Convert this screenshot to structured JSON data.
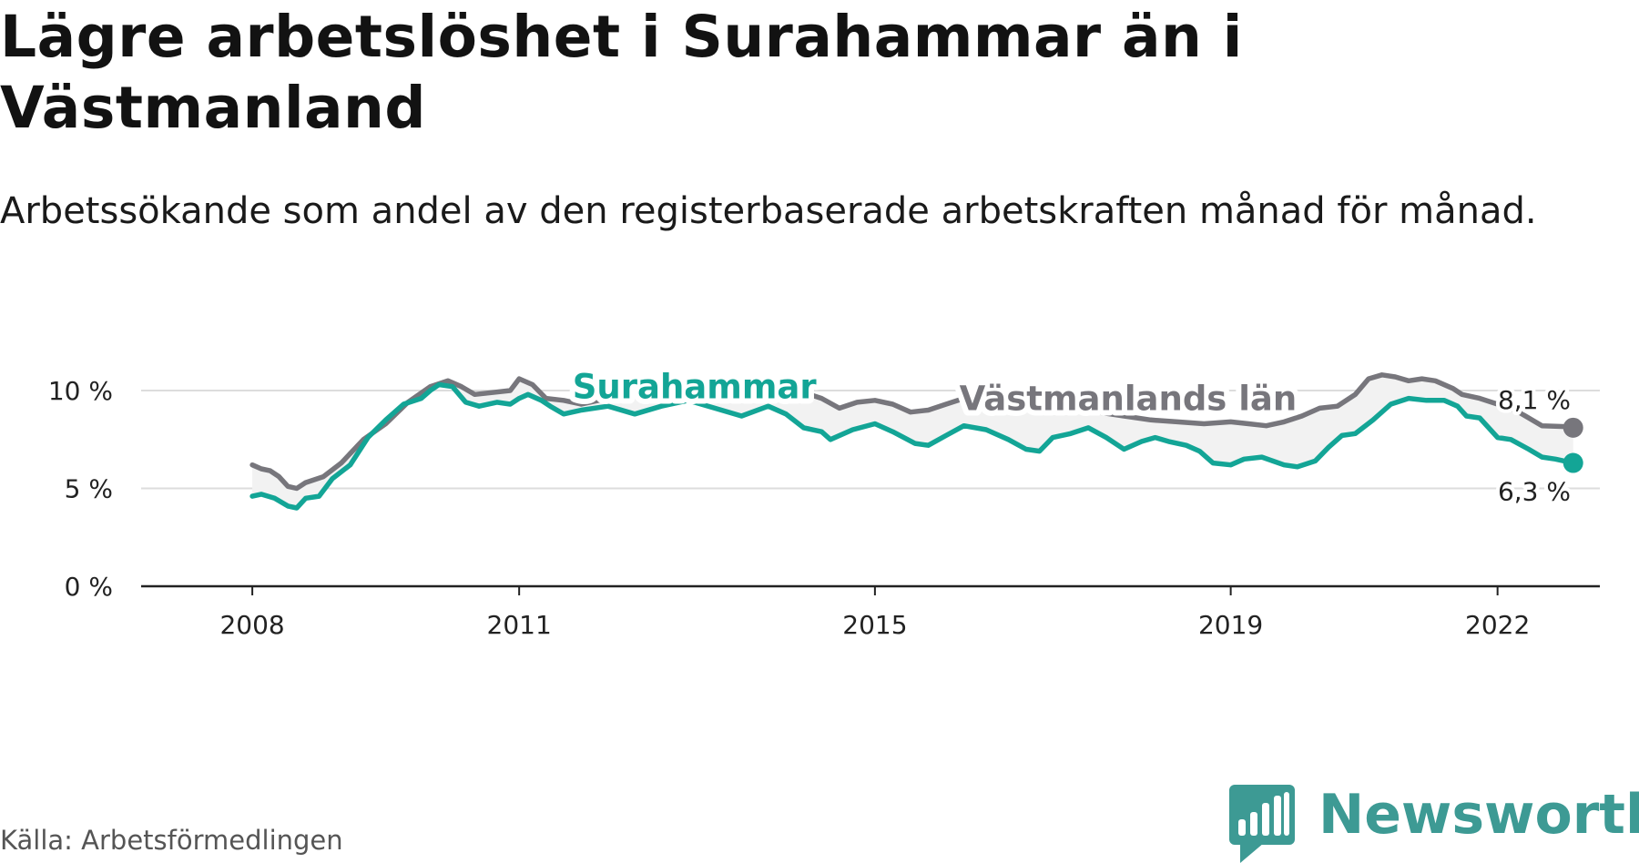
{
  "title": "Lägre arbetslöshet i Surahammar än i Västmanland",
  "subtitle": "Arbetssökande som andel av den registerbaserade arbetskraften månad för månad.",
  "source": "Källa: Arbetsförmedlingen",
  "brand": {
    "name": "Newsworthy",
    "icon": "newsworthy-logo-icon"
  },
  "colors": {
    "surahammar": "#13a596",
    "vastmanland": "#77767c",
    "gap_fill": "#f2f2f2",
    "grid": "#dddddd",
    "axis": "#222222"
  },
  "chart_data": {
    "type": "line",
    "title": "Lägre arbetslöshet i Surahammar än i Västmanland",
    "xlabel": "",
    "ylabel": "",
    "x_ticks": [
      {
        "label": "2008",
        "value": 2008.0
      },
      {
        "label": "2011",
        "value": 2011.0
      },
      {
        "label": "2015",
        "value": 2015.0
      },
      {
        "label": "2019",
        "value": 2019.0
      },
      {
        "label": "2022",
        "value": 2022.0
      }
    ],
    "y_ticks": [
      {
        "label": "0 %",
        "value": 0
      },
      {
        "label": "5 %",
        "value": 5
      },
      {
        "label": "10 %",
        "value": 10
      }
    ],
    "xlim": [
      2006.75,
      2023.15
    ],
    "ylim": [
      0,
      10
    ],
    "grid": true,
    "series": [
      {
        "name": "Västmanlands län",
        "label": "Västmanlands län",
        "end_label": "8,1 %",
        "end_value": 8.1,
        "points": [
          [
            2008.0,
            6.2
          ],
          [
            2008.1,
            6.0
          ],
          [
            2008.2,
            5.9
          ],
          [
            2008.3,
            5.6
          ],
          [
            2008.4,
            5.1
          ],
          [
            2008.5,
            5.0
          ],
          [
            2008.6,
            5.3
          ],
          [
            2008.8,
            5.6
          ],
          [
            2009.0,
            6.3
          ],
          [
            2009.25,
            7.5
          ],
          [
            2009.5,
            8.3
          ],
          [
            2009.75,
            9.4
          ],
          [
            2010.0,
            10.2
          ],
          [
            2010.2,
            10.5
          ],
          [
            2010.35,
            10.2
          ],
          [
            2010.5,
            9.8
          ],
          [
            2010.7,
            9.9
          ],
          [
            2010.9,
            10.0
          ],
          [
            2011.0,
            10.6
          ],
          [
            2011.15,
            10.3
          ],
          [
            2011.3,
            9.6
          ],
          [
            2011.5,
            9.5
          ],
          [
            2011.7,
            9.3
          ],
          [
            2012.0,
            9.6
          ],
          [
            2012.3,
            9.9
          ],
          [
            2012.6,
            10.2
          ],
          [
            2012.9,
            10.6
          ],
          [
            2013.2,
            10.5
          ],
          [
            2013.5,
            10.4
          ],
          [
            2013.8,
            10.5
          ],
          [
            2014.0,
            10.3
          ],
          [
            2014.2,
            9.9
          ],
          [
            2014.4,
            9.6
          ],
          [
            2014.6,
            9.1
          ],
          [
            2014.8,
            9.4
          ],
          [
            2015.0,
            9.5
          ],
          [
            2015.2,
            9.3
          ],
          [
            2015.4,
            8.9
          ],
          [
            2015.6,
            9.0
          ],
          [
            2015.8,
            9.3
          ],
          [
            2016.0,
            9.6
          ],
          [
            2016.3,
            9.3
          ],
          [
            2016.6,
            9.1
          ],
          [
            2016.9,
            9.0
          ],
          [
            2017.2,
            9.2
          ],
          [
            2017.5,
            8.9
          ],
          [
            2017.8,
            8.7
          ],
          [
            2018.1,
            8.5
          ],
          [
            2018.4,
            8.4
          ],
          [
            2018.7,
            8.3
          ],
          [
            2019.0,
            8.4
          ],
          [
            2019.2,
            8.3
          ],
          [
            2019.4,
            8.2
          ],
          [
            2019.6,
            8.4
          ],
          [
            2019.8,
            8.7
          ],
          [
            2020.0,
            9.1
          ],
          [
            2020.2,
            9.2
          ],
          [
            2020.4,
            9.8
          ],
          [
            2020.55,
            10.6
          ],
          [
            2020.7,
            10.8
          ],
          [
            2020.85,
            10.7
          ],
          [
            2021.0,
            10.5
          ],
          [
            2021.15,
            10.6
          ],
          [
            2021.3,
            10.5
          ],
          [
            2021.5,
            10.1
          ],
          [
            2021.6,
            9.8
          ],
          [
            2021.8,
            9.6
          ],
          [
            2022.0,
            9.3
          ],
          [
            2022.2,
            9.0
          ],
          [
            2022.35,
            8.6
          ],
          [
            2022.5,
            8.2
          ],
          [
            2022.8,
            8.15
          ],
          [
            2022.85,
            8.1
          ]
        ]
      },
      {
        "name": "Surahammar",
        "label": "Surahammar",
        "end_label": "6,3 %",
        "end_value": 6.3,
        "points": [
          [
            2008.0,
            4.6
          ],
          [
            2008.1,
            4.7
          ],
          [
            2008.25,
            4.5
          ],
          [
            2008.4,
            4.1
          ],
          [
            2008.5,
            4.0
          ],
          [
            2008.6,
            4.5
          ],
          [
            2008.75,
            4.6
          ],
          [
            2008.9,
            5.5
          ],
          [
            2009.1,
            6.2
          ],
          [
            2009.3,
            7.6
          ],
          [
            2009.5,
            8.5
          ],
          [
            2009.7,
            9.3
          ],
          [
            2009.9,
            9.6
          ],
          [
            2010.0,
            10.0
          ],
          [
            2010.1,
            10.3
          ],
          [
            2010.25,
            10.2
          ],
          [
            2010.4,
            9.4
          ],
          [
            2010.55,
            9.2
          ],
          [
            2010.75,
            9.4
          ],
          [
            2010.9,
            9.3
          ],
          [
            2011.0,
            9.6
          ],
          [
            2011.1,
            9.8
          ],
          [
            2011.25,
            9.5
          ],
          [
            2011.35,
            9.2
          ],
          [
            2011.5,
            8.8
          ],
          [
            2011.7,
            9.0
          ],
          [
            2012.0,
            9.2
          ],
          [
            2012.3,
            8.8
          ],
          [
            2012.6,
            9.2
          ],
          [
            2012.9,
            9.5
          ],
          [
            2013.2,
            9.1
          ],
          [
            2013.5,
            8.7
          ],
          [
            2013.8,
            9.2
          ],
          [
            2014.0,
            8.8
          ],
          [
            2014.2,
            8.1
          ],
          [
            2014.4,
            7.9
          ],
          [
            2014.5,
            7.5
          ],
          [
            2014.75,
            8.0
          ],
          [
            2015.0,
            8.3
          ],
          [
            2015.2,
            7.9
          ],
          [
            2015.45,
            7.3
          ],
          [
            2015.6,
            7.2
          ],
          [
            2015.8,
            7.7
          ],
          [
            2016.0,
            8.2
          ],
          [
            2016.25,
            8.0
          ],
          [
            2016.5,
            7.5
          ],
          [
            2016.7,
            7.0
          ],
          [
            2016.85,
            6.9
          ],
          [
            2017.0,
            7.6
          ],
          [
            2017.2,
            7.8
          ],
          [
            2017.4,
            8.1
          ],
          [
            2017.6,
            7.6
          ],
          [
            2017.8,
            7.0
          ],
          [
            2018.0,
            7.4
          ],
          [
            2018.15,
            7.6
          ],
          [
            2018.3,
            7.4
          ],
          [
            2018.5,
            7.2
          ],
          [
            2018.65,
            6.9
          ],
          [
            2018.8,
            6.3
          ],
          [
            2019.0,
            6.2
          ],
          [
            2019.15,
            6.5
          ],
          [
            2019.35,
            6.6
          ],
          [
            2019.6,
            6.2
          ],
          [
            2019.75,
            6.1
          ],
          [
            2019.95,
            6.4
          ],
          [
            2020.1,
            7.1
          ],
          [
            2020.25,
            7.7
          ],
          [
            2020.4,
            7.8
          ],
          [
            2020.6,
            8.5
          ],
          [
            2020.8,
            9.3
          ],
          [
            2021.0,
            9.6
          ],
          [
            2021.2,
            9.5
          ],
          [
            2021.4,
            9.5
          ],
          [
            2021.55,
            9.2
          ],
          [
            2021.65,
            8.7
          ],
          [
            2021.8,
            8.6
          ],
          [
            2022.0,
            7.6
          ],
          [
            2022.15,
            7.5
          ],
          [
            2022.35,
            7.0
          ],
          [
            2022.5,
            6.6
          ],
          [
            2022.65,
            6.5
          ],
          [
            2022.85,
            6.3
          ]
        ]
      }
    ]
  }
}
